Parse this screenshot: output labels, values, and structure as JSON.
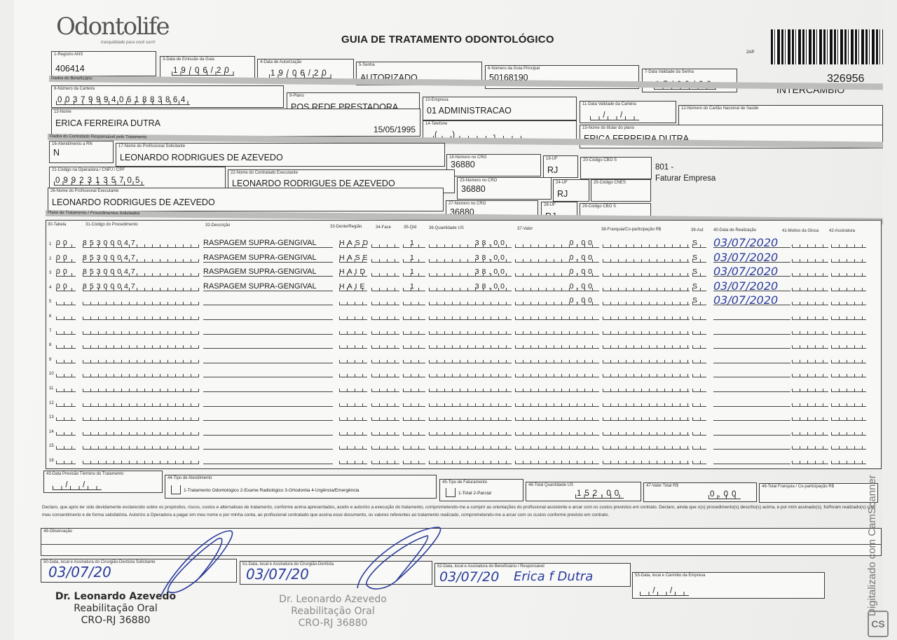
{
  "header": {
    "logo": "Odontolife",
    "logo_tagline": "tranquilidade para você sorrir",
    "title": "GUIA DE TRATAMENTO ODONTOLÓGICO",
    "code_small": "2AP",
    "guide_number": "326956",
    "guide_type": "INTERCÂMBIO"
  },
  "fields": {
    "f1": {
      "label": "1-Registro ANS",
      "value": "406414"
    },
    "f3": {
      "label": "3-Data de Emissão da Guia",
      "value": "19/06/20"
    },
    "f4": {
      "label": "4-Data de Autorização",
      "value": "19/06/20"
    },
    "f5": {
      "label": "5-Senha",
      "value": "AUTORIZADO"
    },
    "f6": {
      "label": "6-Número da Guia Principal",
      "value": "50168190"
    },
    "f7": {
      "label": "7-Data Validade da Senha",
      "value": "17/09/20"
    },
    "f8": {
      "label": "8-Número da Carteira",
      "value": "00379994061883864"
    },
    "f9": {
      "label": "9-Plano",
      "value": "POS REDE PRESTADORA"
    },
    "f10": {
      "label": "10-Empresa",
      "value": "01 ADMINISTRACAO"
    },
    "f11": {
      "label": "11-Data Validade da Carteira",
      "value": "  /  /  "
    },
    "f12": {
      "label": "12-Número do Cartão Nacional de Saúde",
      "value": ""
    },
    "f13": {
      "label": "13-Nome",
      "value": "ERICA FERREIRA DUTRA",
      "birth_date": "15/05/1995"
    },
    "f14": {
      "label": "14-Telefone",
      "value": "(  )      -     "
    },
    "f15": {
      "label": "15-Nome do titular do plano",
      "value": "ERICA FERREIRA DUTRA"
    },
    "f16": {
      "label": "16-Atendimento a RN",
      "value": "N"
    },
    "f17": {
      "label": "17-Nome do Profissional Solicitante",
      "value": "LEONARDO RODRIGUES DE AZEVEDO"
    },
    "f18": {
      "label": "18-Número no CRO",
      "value": "36880"
    },
    "f19": {
      "label": "19-UF",
      "value": "RJ"
    },
    "f20": {
      "label": "20-Código CBO S",
      "value": ""
    },
    "f21": {
      "label": "21-Código na Operadora / CNPJ / CPF",
      "value": "09923135705"
    },
    "f22": {
      "label": "22-Nome do Contratado Executante",
      "value": "LEONARDO RODRIGUES DE AZEVEDO"
    },
    "f23": {
      "label": "23-Número no CRO",
      "value": "36880"
    },
    "f24": {
      "label": "24-UF",
      "value": "RJ"
    },
    "f25": {
      "label": "25-Código CNES",
      "value": ""
    },
    "f26": {
      "label": "26-Nome do Profissional Executante",
      "value": "LEONARDO RODRIGUES DE AZEVEDO"
    },
    "f27": {
      "label": "27-Número no CRO",
      "value": "36880"
    },
    "f28": {
      "label": "28-UF",
      "value": "RJ"
    },
    "f29": {
      "label": "29-Código CBO S",
      "value": ""
    }
  },
  "side_note": {
    "line1": "801 -",
    "line2": "Faturar Empresa"
  },
  "sections": {
    "beneficiary": "Dados do Beneficiário",
    "contractor": "Dados do Contratado Responsável pelo Tratamento",
    "plan": "Plano de Tratamento / Procedimentos Solicitados"
  },
  "table": {
    "headers": [
      "30-Tabela",
      "31-Código do Procedimento",
      "32-Descrição",
      "33-Dente/Região",
      "34-Face",
      "35-Qtd",
      "36-Quantidade US",
      "37-Valor",
      "38-Franquia/Co-participação R$",
      "39-Aut",
      "40-Data de Realização",
      "41-Motivo da Glosa",
      "42-Assinatura"
    ],
    "rows": [
      {
        "n": "1",
        "tabela": "00",
        "code": "85300047",
        "desc": "RASPAGEM SUPRA-GENGIVAL",
        "dente": "HASD",
        "qtd": "1",
        "us": "38,00",
        "valor": "0,00",
        "aut": "S",
        "date": "03/07/2020"
      },
      {
        "n": "2",
        "tabela": "00",
        "code": "85300047",
        "desc": "RASPAGEM SUPRA-GENGIVAL",
        "dente": "HASE",
        "qtd": "1",
        "us": "38,00",
        "valor": "0,00",
        "aut": "S",
        "date": "03/07/2020"
      },
      {
        "n": "3",
        "tabela": "00",
        "code": "85300047",
        "desc": "RASPAGEM SUPRA-GENGIVAL",
        "dente": "HAID",
        "qtd": "1",
        "us": "38,00",
        "valor": "0,00",
        "aut": "S",
        "date": "03/07/2020"
      },
      {
        "n": "4",
        "tabela": "00",
        "code": "85300047",
        "desc": "RASPAGEM SUPRA-GENGIVAL",
        "dente": "HAIE",
        "qtd": "1",
        "us": "38,00",
        "valor": "0,00",
        "aut": "S",
        "date": "03/07/2020"
      },
      {
        "n": "5",
        "tabela": "",
        "code": "",
        "desc": "",
        "dente": "",
        "qtd": "",
        "us": "",
        "valor": "0,00",
        "aut": "S",
        "date": "03/07/2020"
      },
      {
        "n": "6"
      },
      {
        "n": "7"
      },
      {
        "n": "8"
      },
      {
        "n": "9"
      },
      {
        "n": "10"
      },
      {
        "n": "11"
      },
      {
        "n": "12"
      },
      {
        "n": "13"
      },
      {
        "n": "14"
      },
      {
        "n": "15"
      },
      {
        "n": "16"
      }
    ]
  },
  "footer": {
    "f43": {
      "label": "43-Data Previsão Término do Tratamento",
      "value": "  /  /  "
    },
    "f44": {
      "label": "44-Tipo de Atendimento",
      "value": "1-Tratamento Odontológico 2-Exame Radiológico 3-Ortodontia 4-Urgência/Emergência"
    },
    "f45": {
      "label": "45-Tipo de Faturamento",
      "value": "1-Total 2-Parcial"
    },
    "f46": {
      "label": "46-Total Quantidade US",
      "value": "152,00"
    },
    "f47": {
      "label": "47-Valor Total R$",
      "value": "0,00"
    },
    "f48": {
      "label": "48-Total Franquia / Co-participação R$",
      "value": ""
    },
    "declaration": "Declaro, que após ter sido devidamente esclarecido sobre os propósitos, riscos, custos e alternativas de tratamento, conforme acima apresentados, aceito e autorizo a execução do tratamento, comprometendo-me a cumprir as orientações do profissional assistente e arcar com os custos previstos em contrato. Declaro, ainda que o(s) procedimento(s) descrito(s) acima, e por mim assinado(s), foi/foram realizado(s) com meu consentimento e de forma satisfatória. Autorizo a Operadora a pagar em meu nome e por minha conta, ao profissional contratado que assina esse documento, os valores referentes ao tratamento realizado, comprometendo-me a arcar com os custos conforme previsto em contrato.",
    "f49": {
      "label": "49-Observação",
      "value": ""
    },
    "f50": {
      "label": "50-Data, local e Assinatura do Cirurgião-Dentista Solicitante",
      "value": "03/07/20"
    },
    "f51": {
      "label": "51-Data, local e Assinatura do Cirurgião-Dentista",
      "value": "03/07/20"
    },
    "f52": {
      "label": "52-Data, local e Assinatura do Beneficiário / Responsável",
      "value": "03/07/20",
      "signature": "Erica f Dutra"
    },
    "f53": {
      "label": "53-Data, local e Carimbo da Empresa",
      "value": "  /  /  "
    }
  },
  "stamps": [
    {
      "name": "Dr. Leonardo Azevedo",
      "specialty": "Reabilitação Oral",
      "registry": "CRO-RJ 36880"
    },
    {
      "name": "Dr. Leonardo Azevedo",
      "specialty": "Reabilitação Oral",
      "registry": "CRO-RJ 36880"
    }
  ],
  "watermark": {
    "text": "Digitalizado com CamScanner",
    "logo": "CS"
  },
  "colors": {
    "ink_blue": "#2a3c9a",
    "section_bar": "#bdbdbb"
  }
}
